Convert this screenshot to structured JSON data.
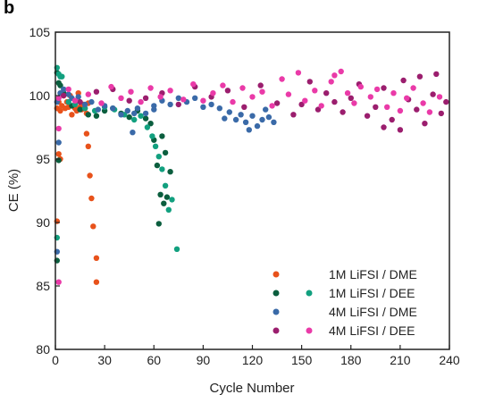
{
  "panel_label": "b",
  "chart_data": {
    "type": "scatter",
    "title": "",
    "xlabel": "Cycle Number",
    "ylabel": "CE (%)",
    "xlim": [
      0,
      240
    ],
    "ylim": [
      80,
      105
    ],
    "xticks": [
      0,
      30,
      60,
      90,
      120,
      150,
      180,
      210,
      240
    ],
    "yticks": [
      80,
      85,
      90,
      95,
      100,
      105
    ],
    "grid": false,
    "legend_position": "bottom-right",
    "legend": [
      {
        "label": "1M LiFSI / DME",
        "colors": [
          "#e8521b"
        ]
      },
      {
        "label": "1M LiFSI / DEE",
        "colors": [
          "#0b5e3e",
          "#12a07f"
        ]
      },
      {
        "label": "4M LiFSI / DME",
        "colors": [
          "#3a6aa8"
        ]
      },
      {
        "label": "4M LiFSI / DEE",
        "colors": [
          "#9b1e6e",
          "#ea3aa8"
        ]
      }
    ],
    "series": [
      {
        "color": "#e8521b",
        "points": [
          [
            1,
            99
          ],
          [
            2,
            99.5
          ],
          [
            3,
            98.8
          ],
          [
            4,
            99.2
          ],
          [
            5,
            100
          ],
          [
            6,
            99
          ],
          [
            7,
            99.5
          ],
          [
            8,
            99.1
          ],
          [
            9,
            100
          ],
          [
            10,
            98.5
          ],
          [
            11,
            99.2
          ],
          [
            12,
            99
          ],
          [
            13,
            98.8
          ],
          [
            14,
            100.2
          ],
          [
            15,
            99.1
          ],
          [
            16,
            98.9
          ],
          [
            17,
            99.3
          ],
          [
            18,
            99
          ],
          [
            19,
            98.6
          ],
          [
            20,
            99.4
          ],
          [
            19,
            97
          ],
          [
            20,
            96
          ],
          [
            21,
            93.7
          ],
          [
            22,
            91.9
          ],
          [
            23,
            89.7
          ],
          [
            25,
            87.2
          ],
          [
            25,
            85.3
          ],
          [
            1,
            90.1
          ],
          [
            2,
            95.4
          ],
          [
            3,
            95
          ]
        ]
      },
      {
        "color": "#0b5e3e",
        "points": [
          [
            1,
            101.8
          ],
          [
            2,
            101
          ],
          [
            3,
            100.8
          ],
          [
            5,
            100.2
          ],
          [
            10,
            99.2
          ],
          [
            15,
            98.9
          ],
          [
            20,
            98.5
          ],
          [
            25,
            98.4
          ],
          [
            30,
            98.8
          ],
          [
            35,
            99
          ],
          [
            40,
            98.6
          ],
          [
            45,
            98.3
          ],
          [
            50,
            98.8
          ],
          [
            55,
            98.2
          ],
          [
            58,
            97.8
          ],
          [
            60,
            96.5
          ],
          [
            62,
            94.5
          ],
          [
            64,
            92.2
          ],
          [
            66,
            91.5
          ],
          [
            63,
            89.9
          ],
          [
            68,
            92
          ],
          [
            70,
            94
          ],
          [
            65,
            96.8
          ],
          [
            67,
            95.5
          ],
          [
            2,
            94.9
          ],
          [
            1,
            87
          ]
        ]
      },
      {
        "color": "#12a07f",
        "points": [
          [
            1,
            102.2
          ],
          [
            2,
            101.7
          ],
          [
            3,
            101.5
          ],
          [
            4,
            101.5
          ],
          [
            8,
            99.5
          ],
          [
            12,
            99.3
          ],
          [
            18,
            99
          ],
          [
            24,
            98.8
          ],
          [
            30,
            99.1
          ],
          [
            36,
            98.9
          ],
          [
            42,
            98.5
          ],
          [
            48,
            98.1
          ],
          [
            52,
            98.4
          ],
          [
            56,
            97.5
          ],
          [
            59,
            96.8
          ],
          [
            61,
            96
          ],
          [
            63,
            95.2
          ],
          [
            65,
            94.2
          ],
          [
            67,
            92.9
          ],
          [
            69,
            91
          ],
          [
            71,
            91.8
          ],
          [
            74,
            87.9
          ],
          [
            1,
            88.8
          ]
        ]
      },
      {
        "color": "#3a6aa8",
        "points": [
          [
            1,
            99.5
          ],
          [
            3,
            100.2
          ],
          [
            5,
            100.5
          ],
          [
            8,
            100.1
          ],
          [
            10,
            99.8
          ],
          [
            14,
            99.9
          ],
          [
            18,
            99.3
          ],
          [
            22,
            99.5
          ],
          [
            26,
            98.9
          ],
          [
            30,
            99.2
          ],
          [
            35,
            99
          ],
          [
            40,
            98.5
          ],
          [
            44,
            98.8
          ],
          [
            47,
            97.1
          ],
          [
            50,
            99
          ],
          [
            55,
            98.6
          ],
          [
            60,
            99.2
          ],
          [
            65,
            99.6
          ],
          [
            70,
            99.3
          ],
          [
            75,
            99.8
          ],
          [
            80,
            99.5
          ],
          [
            85,
            99.8
          ],
          [
            90,
            99.1
          ],
          [
            95,
            99.3
          ],
          [
            100,
            99
          ],
          [
            103,
            98.2
          ],
          [
            106,
            98.7
          ],
          [
            110,
            98.1
          ],
          [
            113,
            98.5
          ],
          [
            116,
            97.9
          ],
          [
            118,
            97.3
          ],
          [
            120,
            98.4
          ],
          [
            123,
            97.6
          ],
          [
            126,
            98.1
          ],
          [
            128,
            98.9
          ],
          [
            130,
            98.3
          ],
          [
            133,
            97.9
          ],
          [
            2,
            96.3
          ],
          [
            1,
            87.7
          ],
          [
            60,
            98.9
          ],
          [
            48,
            98.6
          ]
        ]
      },
      {
        "color": "#9b1e6e",
        "points": [
          [
            5,
            100
          ],
          [
            15,
            99.5
          ],
          [
            25,
            100.3
          ],
          [
            35,
            100.5
          ],
          [
            45,
            99.6
          ],
          [
            55,
            99.8
          ],
          [
            65,
            100.2
          ],
          [
            75,
            99.3
          ],
          [
            85,
            100.7
          ],
          [
            95,
            99.9
          ],
          [
            105,
            100.4
          ],
          [
            115,
            99.1
          ],
          [
            125,
            100.8
          ],
          [
            135,
            99.4
          ],
          [
            145,
            98.5
          ],
          [
            150,
            99.3
          ],
          [
            155,
            101.1
          ],
          [
            160,
            98.9
          ],
          [
            165,
            100.2
          ],
          [
            170,
            99.5
          ],
          [
            175,
            98.7
          ],
          [
            180,
            99.8
          ],
          [
            185,
            100.9
          ],
          [
            190,
            98.4
          ],
          [
            195,
            99.1
          ],
          [
            200,
            100.6
          ],
          [
            205,
            98.1
          ],
          [
            210,
            97.3
          ],
          [
            215,
            99.7
          ],
          [
            220,
            98.9
          ],
          [
            225,
            97.8
          ],
          [
            230,
            100.1
          ],
          [
            235,
            98.6
          ],
          [
            238,
            99.5
          ],
          [
            200,
            97.5
          ],
          [
            212,
            101.2
          ],
          [
            222,
            101.5
          ],
          [
            232,
            101.7
          ]
        ]
      },
      {
        "color": "#ea3aa8",
        "points": [
          [
            2,
            99.8
          ],
          [
            8,
            100.5
          ],
          [
            12,
            99.6
          ],
          [
            20,
            100.1
          ],
          [
            28,
            99.4
          ],
          [
            34,
            100.7
          ],
          [
            40,
            99.8
          ],
          [
            46,
            100.3
          ],
          [
            52,
            99.5
          ],
          [
            58,
            100.6
          ],
          [
            64,
            99.9
          ],
          [
            70,
            100.4
          ],
          [
            78,
            99.7
          ],
          [
            84,
            100.9
          ],
          [
            90,
            99.6
          ],
          [
            96,
            100.2
          ],
          [
            102,
            100.8
          ],
          [
            108,
            99.5
          ],
          [
            114,
            100.6
          ],
          [
            120,
            99.9
          ],
          [
            126,
            100.3
          ],
          [
            132,
            99.2
          ],
          [
            138,
            101.3
          ],
          [
            142,
            100.1
          ],
          [
            148,
            101.8
          ],
          [
            152,
            99.6
          ],
          [
            158,
            100.4
          ],
          [
            162,
            99.2
          ],
          [
            168,
            101.1
          ],
          [
            170,
            101.6
          ],
          [
            174,
            101.9
          ],
          [
            178,
            100.2
          ],
          [
            182,
            99.4
          ],
          [
            186,
            100.7
          ],
          [
            192,
            99.9
          ],
          [
            196,
            100.5
          ],
          [
            202,
            99.1
          ],
          [
            206,
            100.2
          ],
          [
            210,
            98.8
          ],
          [
            214,
            99.8
          ],
          [
            218,
            100.6
          ],
          [
            224,
            99.4
          ],
          [
            228,
            98.7
          ],
          [
            234,
            99.9
          ],
          [
            2,
            97.4
          ],
          [
            2,
            85.3
          ]
        ]
      }
    ]
  }
}
